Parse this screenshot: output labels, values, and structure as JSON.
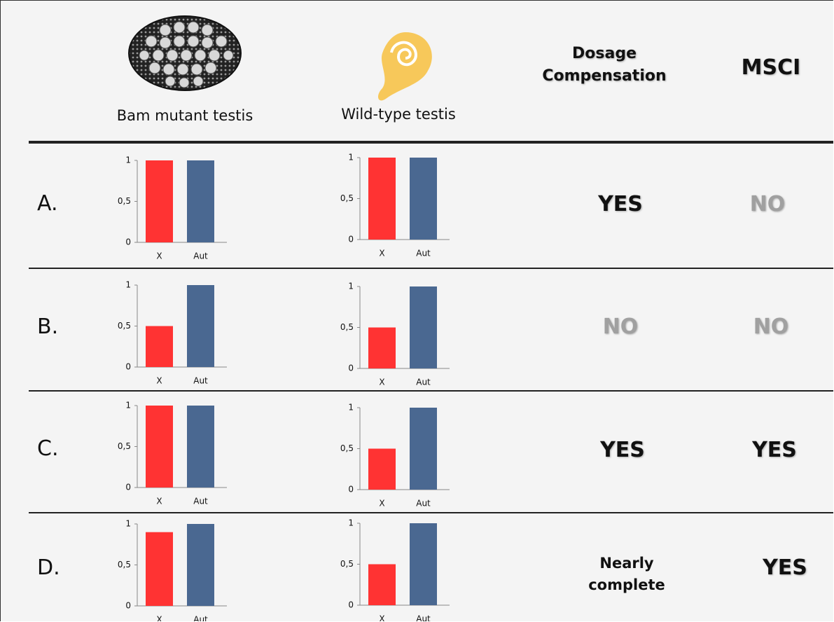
{
  "header": {
    "bam": "Bam mutant testis",
    "wild_type": "Wild-type testis",
    "dosage": "Dosage Compensation",
    "msci": "MSCI"
  },
  "rows": [
    {
      "label": "A.",
      "dosage": "YES",
      "msci": "NO",
      "bam": {
        "type": "bar",
        "categories": [
          "X",
          "Aut"
        ],
        "values": [
          1,
          1
        ],
        "colors": [
          "#ff3333",
          "#4a6891"
        ],
        "ylim": [
          0,
          1
        ],
        "yticks": [
          0,
          {
            "value": 0.5,
            "label": "0,5"
          },
          1
        ]
      },
      "wild_type": {
        "type": "bar",
        "categories": [
          "X",
          "Aut"
        ],
        "values": [
          1,
          1
        ],
        "colors": [
          "#ff3333",
          "#4a6891"
        ],
        "ylim": [
          0,
          1
        ],
        "yticks": [
          0,
          {
            "value": 0.5,
            "label": "0,5"
          },
          1
        ]
      }
    },
    {
      "label": "B.",
      "dosage": "NO",
      "msci": "NO",
      "bam": {
        "type": "bar",
        "categories": [
          "X",
          "Aut"
        ],
        "values": [
          0.5,
          1
        ],
        "colors": [
          "#ff3333",
          "#4a6891"
        ],
        "ylim": [
          0,
          1
        ],
        "yticks": [
          0,
          {
            "value": 0.5,
            "label": "0,5"
          },
          1
        ]
      },
      "wild_type": {
        "type": "bar",
        "categories": [
          "X",
          "Aut"
        ],
        "values": [
          0.5,
          1
        ],
        "colors": [
          "#ff3333",
          "#4a6891"
        ],
        "ylim": [
          0,
          1
        ],
        "yticks": [
          0,
          {
            "value": 0.5,
            "label": "0,5"
          },
          1
        ]
      }
    },
    {
      "label": "C.",
      "dosage": "YES",
      "msci": "YES",
      "bam": {
        "type": "bar",
        "categories": [
          "X",
          "Aut"
        ],
        "values": [
          1,
          1
        ],
        "colors": [
          "#ff3333",
          "#4a6891"
        ],
        "ylim": [
          0,
          1
        ],
        "yticks": [
          0,
          {
            "value": 0.5,
            "label": "0,5"
          },
          1
        ]
      },
      "wild_type": {
        "type": "bar",
        "categories": [
          "X",
          "Aut"
        ],
        "values": [
          0.5,
          1
        ],
        "colors": [
          "#ff3333",
          "#4a6891"
        ],
        "ylim": [
          0,
          1
        ],
        "yticks": [
          0,
          {
            "value": 0.5,
            "label": "0,5"
          },
          1
        ]
      }
    },
    {
      "label": "D.",
      "dosage": "Nearly complete",
      "msci": "YES",
      "bam": {
        "type": "bar",
        "categories": [
          "X",
          "Aut"
        ],
        "values": [
          0.9,
          1
        ],
        "colors": [
          "#ff3333",
          "#4a6891"
        ],
        "ylim": [
          0,
          1
        ],
        "yticks": [
          0,
          {
            "value": 0.5,
            "label": "0,5"
          },
          1
        ]
      },
      "wild_type": {
        "type": "bar",
        "categories": [
          "X",
          "Aut"
        ],
        "values": [
          0.5,
          1
        ],
        "colors": [
          "#ff3333",
          "#4a6891"
        ],
        "ylim": [
          0,
          1
        ],
        "yticks": [
          0,
          {
            "value": 0.5,
            "label": "0,5"
          },
          1
        ]
      }
    }
  ]
}
